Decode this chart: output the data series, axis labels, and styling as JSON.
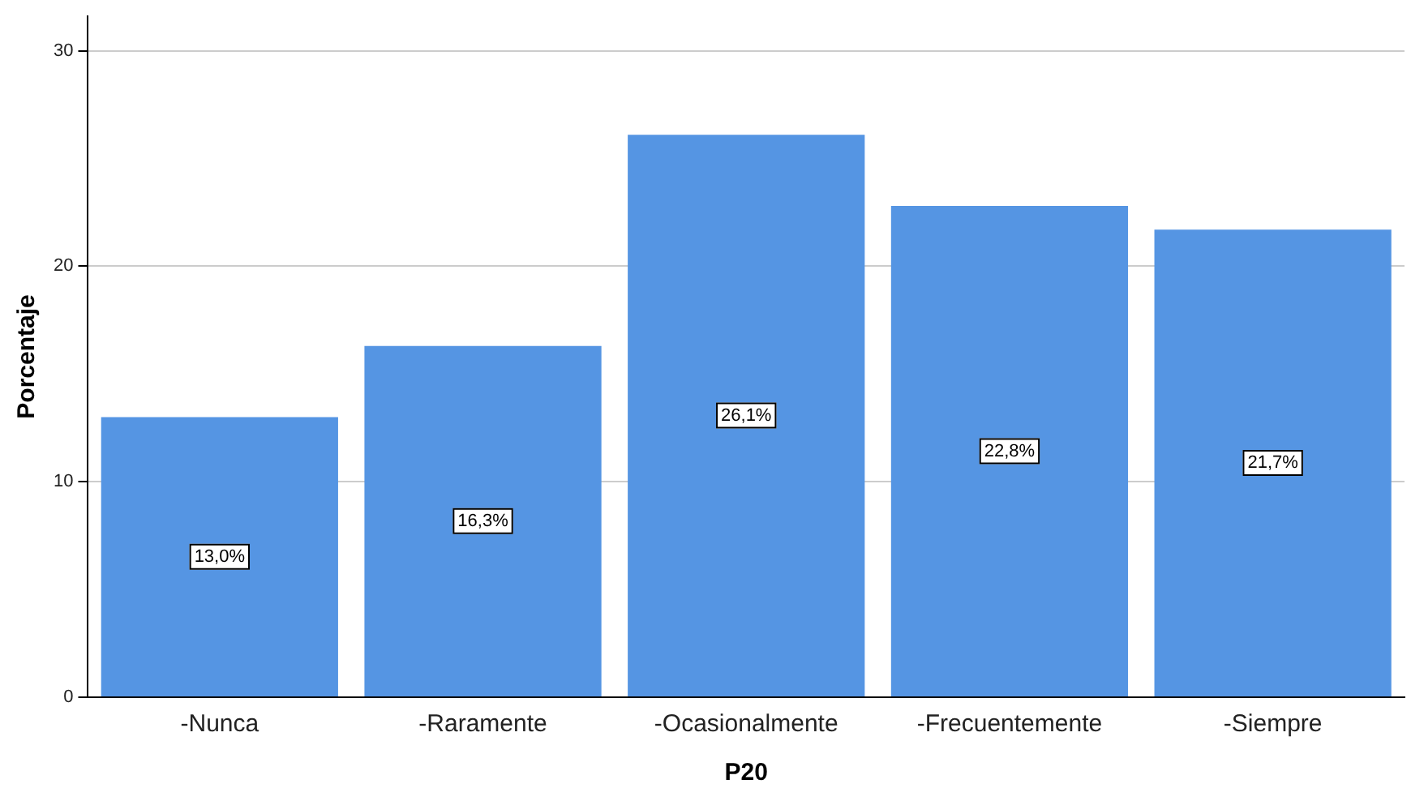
{
  "chart_data": {
    "type": "bar",
    "xlabel": "P20",
    "ylabel": "Porcentaje",
    "categories": [
      "-Nunca",
      "-Raramente",
      "-Ocasionalmente",
      "-Frecuentemente",
      "-Siempre"
    ],
    "values": [
      13.0,
      16.3,
      26.1,
      22.8,
      21.7
    ],
    "value_labels": [
      "13,0%",
      "16,3%",
      "26,1%",
      "22,8%",
      "21,7%"
    ],
    "color": "#5595e3",
    "ylim": [
      0,
      31.6
    ],
    "yticks": [
      0,
      10,
      20,
      30
    ],
    "grid": "y",
    "legend": false
  }
}
